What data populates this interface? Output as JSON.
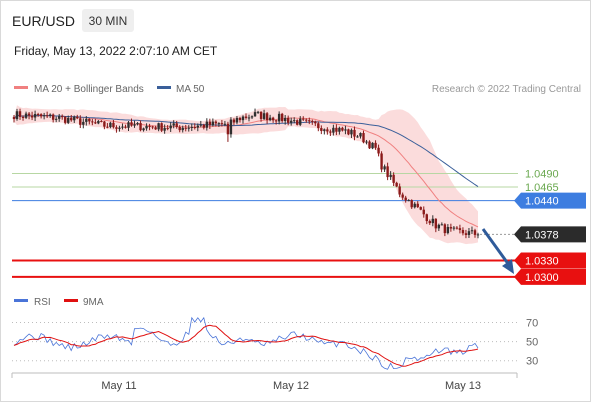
{
  "header": {
    "pair": "EUR/USD",
    "timeframe": "30 MIN",
    "datetime": "Friday, May 13, 2022 2:07:10 AM CET"
  },
  "legend": {
    "items": [
      {
        "label": "MA 20 + Bollinger Bands",
        "color": "#f08080"
      },
      {
        "label": "MA 50",
        "color": "#3a5f9a"
      }
    ],
    "credit": "Research © 2022 Trading Central"
  },
  "rsi_legend": {
    "items": [
      {
        "label": "RSI",
        "color": "#4a74d8"
      },
      {
        "label": "9MA",
        "color": "#e01010"
      }
    ]
  },
  "chart_data": [
    {
      "type": "candlestick",
      "x_ticks": [
        "May 11",
        "May 12",
        "May 13"
      ],
      "ylim": [
        1.0285,
        1.0625
      ],
      "levels": [
        {
          "value": 1.049,
          "label": "1.0490",
          "kind": "resistance-green"
        },
        {
          "value": 1.0465,
          "label": "1.0465",
          "kind": "resistance-green"
        },
        {
          "value": 1.044,
          "label": "1.0440",
          "kind": "resistance-blue"
        },
        {
          "value": 1.0378,
          "label": "1.0378",
          "kind": "last-price"
        },
        {
          "value": 1.033,
          "label": "1.0330",
          "kind": "target-red"
        },
        {
          "value": 1.03,
          "label": "1.0300",
          "kind": "target-red"
        }
      ],
      "colors": {
        "up": "#2f2f2f",
        "down": "#8b1a1a",
        "band": "#fbdcdc",
        "ma20": "#f08080",
        "ma50": "#3a5f9a",
        "green": "#6aa84f",
        "blue": "#3d7de0",
        "red": "#e81010",
        "arrow": "#2f5b9a"
      }
    },
    {
      "type": "line",
      "title": "RSI",
      "series": [
        {
          "name": "RSI"
        },
        {
          "name": "9MA"
        }
      ],
      "ylim": [
        15,
        80
      ],
      "y_ticks": [
        "70",
        "50",
        "30"
      ],
      "y_tick_values": [
        70,
        50,
        30
      ],
      "x_ticks": [
        "May 11",
        "May 12",
        "May 13"
      ]
    }
  ]
}
